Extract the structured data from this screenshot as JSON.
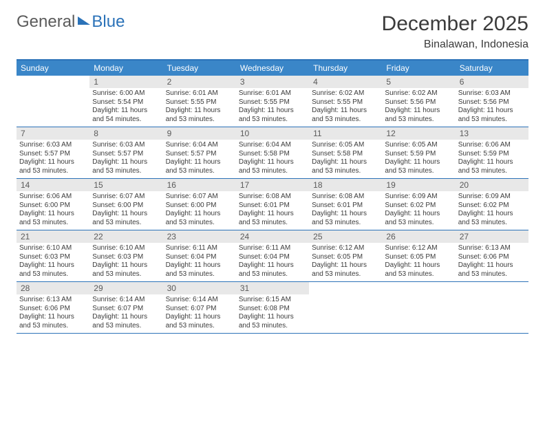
{
  "logo": {
    "part1": "General",
    "part2": "Blue"
  },
  "title": "December 2025",
  "location": "Binalawan, Indonesia",
  "colors": {
    "header_bg": "#3a86c8",
    "header_text": "#ffffff",
    "border": "#2b72b8",
    "daynum_bg": "#e8e8e8",
    "text": "#3b3b3b"
  },
  "day_names": [
    "Sunday",
    "Monday",
    "Tuesday",
    "Wednesday",
    "Thursday",
    "Friday",
    "Saturday"
  ],
  "weeks": [
    [
      {
        "n": "",
        "sr": "",
        "ss": "",
        "dl": ""
      },
      {
        "n": "1",
        "sr": "Sunrise: 6:00 AM",
        "ss": "Sunset: 5:54 PM",
        "dl": "Daylight: 11 hours and 54 minutes."
      },
      {
        "n": "2",
        "sr": "Sunrise: 6:01 AM",
        "ss": "Sunset: 5:55 PM",
        "dl": "Daylight: 11 hours and 53 minutes."
      },
      {
        "n": "3",
        "sr": "Sunrise: 6:01 AM",
        "ss": "Sunset: 5:55 PM",
        "dl": "Daylight: 11 hours and 53 minutes."
      },
      {
        "n": "4",
        "sr": "Sunrise: 6:02 AM",
        "ss": "Sunset: 5:55 PM",
        "dl": "Daylight: 11 hours and 53 minutes."
      },
      {
        "n": "5",
        "sr": "Sunrise: 6:02 AM",
        "ss": "Sunset: 5:56 PM",
        "dl": "Daylight: 11 hours and 53 minutes."
      },
      {
        "n": "6",
        "sr": "Sunrise: 6:03 AM",
        "ss": "Sunset: 5:56 PM",
        "dl": "Daylight: 11 hours and 53 minutes."
      }
    ],
    [
      {
        "n": "7",
        "sr": "Sunrise: 6:03 AM",
        "ss": "Sunset: 5:57 PM",
        "dl": "Daylight: 11 hours and 53 minutes."
      },
      {
        "n": "8",
        "sr": "Sunrise: 6:03 AM",
        "ss": "Sunset: 5:57 PM",
        "dl": "Daylight: 11 hours and 53 minutes."
      },
      {
        "n": "9",
        "sr": "Sunrise: 6:04 AM",
        "ss": "Sunset: 5:57 PM",
        "dl": "Daylight: 11 hours and 53 minutes."
      },
      {
        "n": "10",
        "sr": "Sunrise: 6:04 AM",
        "ss": "Sunset: 5:58 PM",
        "dl": "Daylight: 11 hours and 53 minutes."
      },
      {
        "n": "11",
        "sr": "Sunrise: 6:05 AM",
        "ss": "Sunset: 5:58 PM",
        "dl": "Daylight: 11 hours and 53 minutes."
      },
      {
        "n": "12",
        "sr": "Sunrise: 6:05 AM",
        "ss": "Sunset: 5:59 PM",
        "dl": "Daylight: 11 hours and 53 minutes."
      },
      {
        "n": "13",
        "sr": "Sunrise: 6:06 AM",
        "ss": "Sunset: 5:59 PM",
        "dl": "Daylight: 11 hours and 53 minutes."
      }
    ],
    [
      {
        "n": "14",
        "sr": "Sunrise: 6:06 AM",
        "ss": "Sunset: 6:00 PM",
        "dl": "Daylight: 11 hours and 53 minutes."
      },
      {
        "n": "15",
        "sr": "Sunrise: 6:07 AM",
        "ss": "Sunset: 6:00 PM",
        "dl": "Daylight: 11 hours and 53 minutes."
      },
      {
        "n": "16",
        "sr": "Sunrise: 6:07 AM",
        "ss": "Sunset: 6:00 PM",
        "dl": "Daylight: 11 hours and 53 minutes."
      },
      {
        "n": "17",
        "sr": "Sunrise: 6:08 AM",
        "ss": "Sunset: 6:01 PM",
        "dl": "Daylight: 11 hours and 53 minutes."
      },
      {
        "n": "18",
        "sr": "Sunrise: 6:08 AM",
        "ss": "Sunset: 6:01 PM",
        "dl": "Daylight: 11 hours and 53 minutes."
      },
      {
        "n": "19",
        "sr": "Sunrise: 6:09 AM",
        "ss": "Sunset: 6:02 PM",
        "dl": "Daylight: 11 hours and 53 minutes."
      },
      {
        "n": "20",
        "sr": "Sunrise: 6:09 AM",
        "ss": "Sunset: 6:02 PM",
        "dl": "Daylight: 11 hours and 53 minutes."
      }
    ],
    [
      {
        "n": "21",
        "sr": "Sunrise: 6:10 AM",
        "ss": "Sunset: 6:03 PM",
        "dl": "Daylight: 11 hours and 53 minutes."
      },
      {
        "n": "22",
        "sr": "Sunrise: 6:10 AM",
        "ss": "Sunset: 6:03 PM",
        "dl": "Daylight: 11 hours and 53 minutes."
      },
      {
        "n": "23",
        "sr": "Sunrise: 6:11 AM",
        "ss": "Sunset: 6:04 PM",
        "dl": "Daylight: 11 hours and 53 minutes."
      },
      {
        "n": "24",
        "sr": "Sunrise: 6:11 AM",
        "ss": "Sunset: 6:04 PM",
        "dl": "Daylight: 11 hours and 53 minutes."
      },
      {
        "n": "25",
        "sr": "Sunrise: 6:12 AM",
        "ss": "Sunset: 6:05 PM",
        "dl": "Daylight: 11 hours and 53 minutes."
      },
      {
        "n": "26",
        "sr": "Sunrise: 6:12 AM",
        "ss": "Sunset: 6:05 PM",
        "dl": "Daylight: 11 hours and 53 minutes."
      },
      {
        "n": "27",
        "sr": "Sunrise: 6:13 AM",
        "ss": "Sunset: 6:06 PM",
        "dl": "Daylight: 11 hours and 53 minutes."
      }
    ],
    [
      {
        "n": "28",
        "sr": "Sunrise: 6:13 AM",
        "ss": "Sunset: 6:06 PM",
        "dl": "Daylight: 11 hours and 53 minutes."
      },
      {
        "n": "29",
        "sr": "Sunrise: 6:14 AM",
        "ss": "Sunset: 6:07 PM",
        "dl": "Daylight: 11 hours and 53 minutes."
      },
      {
        "n": "30",
        "sr": "Sunrise: 6:14 AM",
        "ss": "Sunset: 6:07 PM",
        "dl": "Daylight: 11 hours and 53 minutes."
      },
      {
        "n": "31",
        "sr": "Sunrise: 6:15 AM",
        "ss": "Sunset: 6:08 PM",
        "dl": "Daylight: 11 hours and 53 minutes."
      },
      {
        "n": "",
        "sr": "",
        "ss": "",
        "dl": ""
      },
      {
        "n": "",
        "sr": "",
        "ss": "",
        "dl": ""
      },
      {
        "n": "",
        "sr": "",
        "ss": "",
        "dl": ""
      }
    ]
  ]
}
